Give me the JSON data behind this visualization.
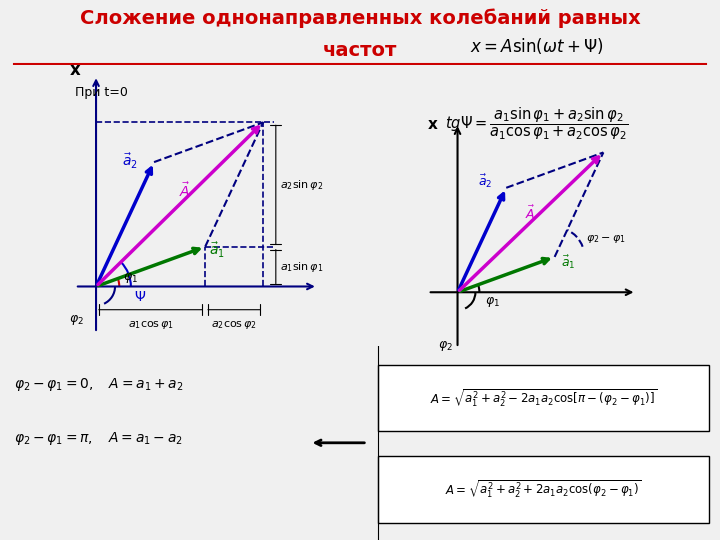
{
  "title_line1": "Сложение однонаправленных колебаний равных",
  "title_line2": "частот",
  "title_color": "#CC0000",
  "bg_color": "#F0F0F0",
  "formula1": "$x = A\\sin(\\omega t + \\Psi)$",
  "formula2": "$tg\\Psi = \\dfrac{a_1 \\sin\\varphi_1 + a_2 \\sin\\varphi_2}{a_1 \\cos\\varphi_1 + a_2 \\cos\\varphi_2}$",
  "formula3": "$A = \\sqrt{a_1^2 + a_2^2 - 2a_1 a_2 \\cos[\\pi - (\\varphi_2 - \\varphi_1)]}$",
  "formula4": "$A = \\sqrt{a_1^2 + a_2^2 + 2a_1 a_2 \\cos(\\varphi_2 - \\varphi_1)}$",
  "text_pri": "При t=0",
  "phi1_deg": 20,
  "phi2_deg": 65,
  "a1": 0.55,
  "a2": 0.65,
  "arrow_color_a1": "#007700",
  "arrow_color_a2": "#0000CC",
  "arrow_color_A": "#CC00CC",
  "axis_color": "#000080",
  "dashed_color": "#000080",
  "angle_arc_color_phi1": "#CC0000",
  "angle_arc_color_psi": "#0000CC",
  "text_color": "#000000",
  "yellow_bg": "#FFFF00",
  "case1_text": "$\\varphi_2 - \\varphi_1 = 0, \\quad A = a_1 + a_2$",
  "case2_text": "$\\varphi_2 - \\varphi_1 = \\pi, \\quad A = a_1 - a_2$"
}
